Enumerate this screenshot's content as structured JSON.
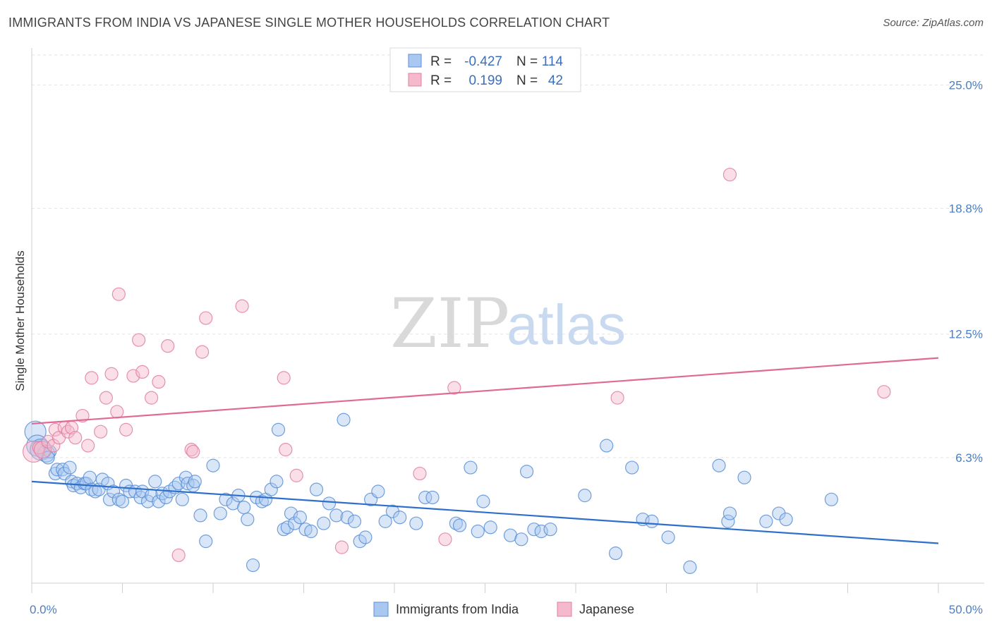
{
  "title": "IMMIGRANTS FROM INDIA VS JAPANESE SINGLE MOTHER HOUSEHOLDS CORRELATION CHART",
  "source": "Source: ZipAtlas.com",
  "watermark": {
    "part1": "ZIP",
    "part2": "atlas"
  },
  "colors": {
    "india": "#5b8fd6",
    "india_fill": "#a9c8f0",
    "japanese": "#e07fa0",
    "japanese_fill": "#f5b9cc",
    "india_line": "#2f6fcc",
    "japanese_line": "#e06a95",
    "tick": "#4a7fc8"
  },
  "legend": {
    "rows": [
      {
        "r_label": "R =",
        "r_value": "-0.427",
        "n_label": "N =",
        "n_value": "114"
      },
      {
        "r_label": "R =",
        "r_value": "0.199",
        "n_label": "N =",
        "n_value": "42"
      }
    ]
  },
  "chart_data": {
    "type": "scatter",
    "xlabel": "",
    "ylabel": "Single Mother Households",
    "xlim": [
      0,
      50
    ],
    "ylim": [
      0,
      26.5
    ],
    "x_tick_labels": [
      "0.0%",
      "50.0%"
    ],
    "y_ticks": [
      6.3,
      12.5,
      18.8,
      25.0
    ],
    "y_tick_labels": [
      "6.3%",
      "12.5%",
      "18.8%",
      "25.0%"
    ],
    "grid": true,
    "legend_position": "bottom",
    "series": [
      {
        "name": "Immigrants from India",
        "trend": {
          "x": [
            0,
            50
          ],
          "y": [
            5.1,
            2.0
          ]
        },
        "points": [
          [
            0.2,
            7.6,
            "l"
          ],
          [
            0.3,
            6.9,
            "l"
          ],
          [
            0.5,
            6.7,
            "l"
          ],
          [
            0.8,
            6.5,
            "m"
          ],
          [
            1.0,
            6.6
          ],
          [
            0.9,
            6.3
          ],
          [
            1.3,
            5.5
          ],
          [
            1.4,
            5.7
          ],
          [
            1.7,
            5.7
          ],
          [
            1.8,
            5.5
          ],
          [
            2.1,
            5.8
          ],
          [
            2.2,
            5.1
          ],
          [
            2.3,
            4.9
          ],
          [
            2.5,
            5.0
          ],
          [
            2.7,
            4.8
          ],
          [
            2.9,
            5.0
          ],
          [
            3.0,
            5.0
          ],
          [
            3.2,
            5.3
          ],
          [
            3.3,
            4.7
          ],
          [
            3.5,
            4.6
          ],
          [
            3.7,
            4.7
          ],
          [
            3.9,
            5.2
          ],
          [
            4.2,
            5.0
          ],
          [
            4.3,
            4.2
          ],
          [
            4.5,
            4.6
          ],
          [
            4.8,
            4.2
          ],
          [
            5.0,
            4.1
          ],
          [
            5.2,
            4.9
          ],
          [
            5.4,
            4.6
          ],
          [
            5.7,
            4.6
          ],
          [
            6.0,
            4.3
          ],
          [
            6.1,
            4.6
          ],
          [
            6.4,
            4.1
          ],
          [
            6.6,
            4.4
          ],
          [
            6.8,
            5.1
          ],
          [
            7.0,
            4.1
          ],
          [
            7.2,
            4.5
          ],
          [
            7.4,
            4.3
          ],
          [
            7.6,
            4.6
          ],
          [
            7.9,
            4.8
          ],
          [
            8.1,
            5.0
          ],
          [
            8.3,
            4.2
          ],
          [
            8.5,
            5.3
          ],
          [
            8.6,
            5.0
          ],
          [
            8.9,
            4.9
          ],
          [
            9.0,
            5.1
          ],
          [
            9.3,
            3.4
          ],
          [
            9.6,
            2.1
          ],
          [
            10.0,
            5.9
          ],
          [
            10.4,
            3.5
          ],
          [
            10.7,
            4.2
          ],
          [
            11.1,
            4.0
          ],
          [
            11.4,
            4.4
          ],
          [
            11.7,
            3.8
          ],
          [
            11.9,
            3.2
          ],
          [
            12.2,
            0.9
          ],
          [
            12.4,
            4.3
          ],
          [
            12.7,
            4.1
          ],
          [
            12.9,
            4.2
          ],
          [
            13.2,
            4.7
          ],
          [
            13.5,
            5.1
          ],
          [
            13.6,
            7.7
          ],
          [
            13.9,
            2.7
          ],
          [
            14.1,
            2.8
          ],
          [
            14.3,
            3.5
          ],
          [
            14.5,
            3.0
          ],
          [
            14.8,
            3.3
          ],
          [
            15.1,
            2.7
          ],
          [
            15.4,
            2.6
          ],
          [
            15.7,
            4.7
          ],
          [
            16.1,
            3.0
          ],
          [
            16.4,
            4.0
          ],
          [
            16.8,
            3.4
          ],
          [
            17.2,
            8.2
          ],
          [
            17.4,
            3.3
          ],
          [
            17.8,
            3.1
          ],
          [
            18.1,
            2.1
          ],
          [
            18.4,
            2.3
          ],
          [
            18.7,
            4.2
          ],
          [
            19.1,
            4.6
          ],
          [
            19.5,
            3.1
          ],
          [
            19.9,
            3.6
          ],
          [
            20.3,
            3.3
          ],
          [
            21.2,
            3.0
          ],
          [
            21.7,
            4.3
          ],
          [
            22.1,
            4.3
          ],
          [
            23.4,
            3.0
          ],
          [
            23.6,
            2.9
          ],
          [
            24.2,
            5.8
          ],
          [
            24.6,
            2.6
          ],
          [
            24.9,
            4.1
          ],
          [
            25.3,
            2.8
          ],
          [
            26.4,
            2.4
          ],
          [
            27.0,
            2.2
          ],
          [
            27.3,
            5.6
          ],
          [
            27.7,
            2.7
          ],
          [
            28.1,
            2.6
          ],
          [
            28.6,
            2.7
          ],
          [
            30.5,
            4.4
          ],
          [
            31.7,
            6.9
          ],
          [
            32.2,
            1.5
          ],
          [
            33.1,
            5.8
          ],
          [
            33.7,
            3.2
          ],
          [
            34.2,
            3.1
          ],
          [
            35.1,
            2.3
          ],
          [
            36.3,
            0.8
          ],
          [
            37.9,
            5.9
          ],
          [
            38.4,
            3.1
          ],
          [
            38.5,
            3.5
          ],
          [
            39.3,
            5.3
          ],
          [
            40.5,
            3.1
          ],
          [
            41.2,
            3.5
          ],
          [
            41.6,
            3.2
          ],
          [
            44.1,
            4.2
          ]
        ]
      },
      {
        "name": "Japanese",
        "trend": {
          "x": [
            0,
            50
          ],
          "y": [
            8.0,
            11.3
          ]
        },
        "points": [
          [
            0.1,
            6.6,
            "l"
          ],
          [
            0.4,
            6.8
          ],
          [
            0.6,
            6.7,
            "m"
          ],
          [
            0.9,
            7.1
          ],
          [
            1.2,
            6.9
          ],
          [
            1.3,
            7.7
          ],
          [
            1.5,
            7.3
          ],
          [
            1.8,
            7.8
          ],
          [
            2.0,
            7.6
          ],
          [
            2.2,
            7.8
          ],
          [
            2.4,
            7.3
          ],
          [
            2.8,
            8.4
          ],
          [
            3.1,
            6.9
          ],
          [
            3.3,
            10.3
          ],
          [
            3.8,
            7.6
          ],
          [
            4.1,
            9.3
          ],
          [
            4.4,
            10.5
          ],
          [
            4.7,
            8.6
          ],
          [
            4.8,
            14.5
          ],
          [
            5.2,
            7.7
          ],
          [
            5.6,
            10.4
          ],
          [
            5.9,
            12.2
          ],
          [
            6.1,
            10.6
          ],
          [
            6.6,
            9.3
          ],
          [
            7.0,
            10.1
          ],
          [
            7.5,
            11.9
          ],
          [
            8.1,
            1.4
          ],
          [
            8.8,
            6.7
          ],
          [
            8.9,
            6.6
          ],
          [
            9.4,
            11.6
          ],
          [
            9.6,
            13.3
          ],
          [
            11.6,
            13.9
          ],
          [
            13.9,
            10.3
          ],
          [
            14.0,
            6.7
          ],
          [
            14.6,
            5.4
          ],
          [
            17.1,
            1.8
          ],
          [
            21.4,
            5.5
          ],
          [
            22.8,
            2.2
          ],
          [
            23.3,
            9.8
          ],
          [
            32.3,
            9.3
          ],
          [
            38.5,
            20.5
          ],
          [
            47.0,
            9.6
          ]
        ]
      }
    ]
  },
  "bottom_legend": [
    {
      "label": "Immigrants from India"
    },
    {
      "label": "Japanese"
    }
  ]
}
